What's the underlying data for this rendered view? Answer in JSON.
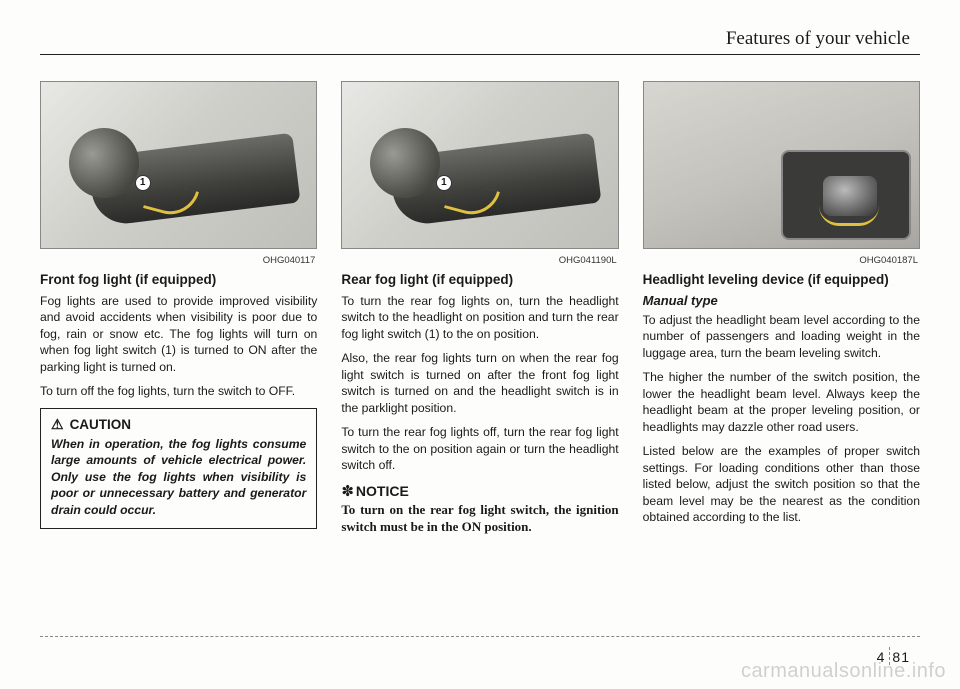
{
  "chapter_title": "Features of your vehicle",
  "columns": {
    "left": {
      "fig_code": "OHG040117",
      "heading": "Front fog light (if equipped)",
      "para1": "Fog lights are used to provide improved visibility and avoid accidents when visibility is poor due to fog, rain or snow etc. The fog lights will turn on when fog light switch (1) is turned to ON after the parking light is turned on.",
      "para2": "To turn off the fog lights, turn the switch to OFF.",
      "caution_label": "CAUTION",
      "caution_body": "When in operation, the fog lights consume large amounts of vehicle electrical power. Only use the fog lights when visibility is poor or unnecessary battery and generator drain could occur."
    },
    "middle": {
      "fig_code": "OHG041190L",
      "heading": "Rear fog light (if equipped)",
      "para1": "To turn the rear fog lights on, turn the headlight switch to the headlight on position and turn the rear fog light switch (1) to the on position.",
      "para2": "Also, the rear fog lights turn on when the rear fog light switch is turned on after the front fog light switch is turned on and the headlight switch is in the parklight position.",
      "para3": "To turn the rear fog lights off, turn the rear fog light switch to the on position again or turn the headlight switch off.",
      "notice_label": "NOTICE",
      "notice_body": "To turn on the rear fog light switch, the ignition switch must be in the ON position."
    },
    "right": {
      "fig_code": "OHG040187L",
      "heading": "Headlight leveling device (if equipped)",
      "subheading": "Manual type",
      "para1": "To adjust the headlight beam level according to the number of passengers and loading weight in the luggage area, turn the beam leveling switch.",
      "para2": "The higher the number of the switch position, the lower the headlight beam level. Always keep the headlight beam at the proper leveling position, or headlights may dazzle other road users.",
      "para3": "Listed below are the examples of proper switch settings. For loading conditions other than those listed below, adjust the switch position so that the beam level may be the nearest as the condition obtained according to the list."
    }
  },
  "page_number": {
    "section": "4",
    "page": "81"
  },
  "watermark": "carmanualsonline.info",
  "markers": {
    "one": "1"
  }
}
